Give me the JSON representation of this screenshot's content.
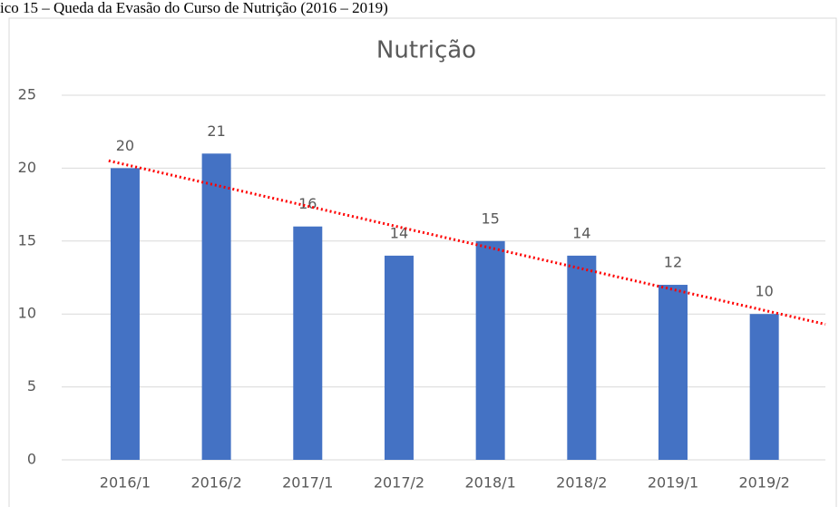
{
  "caption": "ico 15 – Queda da Evasão do Curso de Nutrição (2016 – 2019)",
  "chart_data": {
    "type": "bar",
    "title": "Nutrição",
    "categories": [
      "2016/1",
      "2016/2",
      "2017/1",
      "2017/2",
      "2018/1",
      "2018/2",
      "2019/1",
      "2019/2"
    ],
    "values": [
      20,
      21,
      16,
      14,
      15,
      14,
      12,
      10
    ],
    "color": "#4472c4",
    "ylim": [
      0,
      25
    ],
    "yticks": [
      0,
      5,
      10,
      15,
      20,
      25
    ],
    "grid": true,
    "trendline": {
      "type": "linear",
      "color": "#ff0000"
    }
  }
}
